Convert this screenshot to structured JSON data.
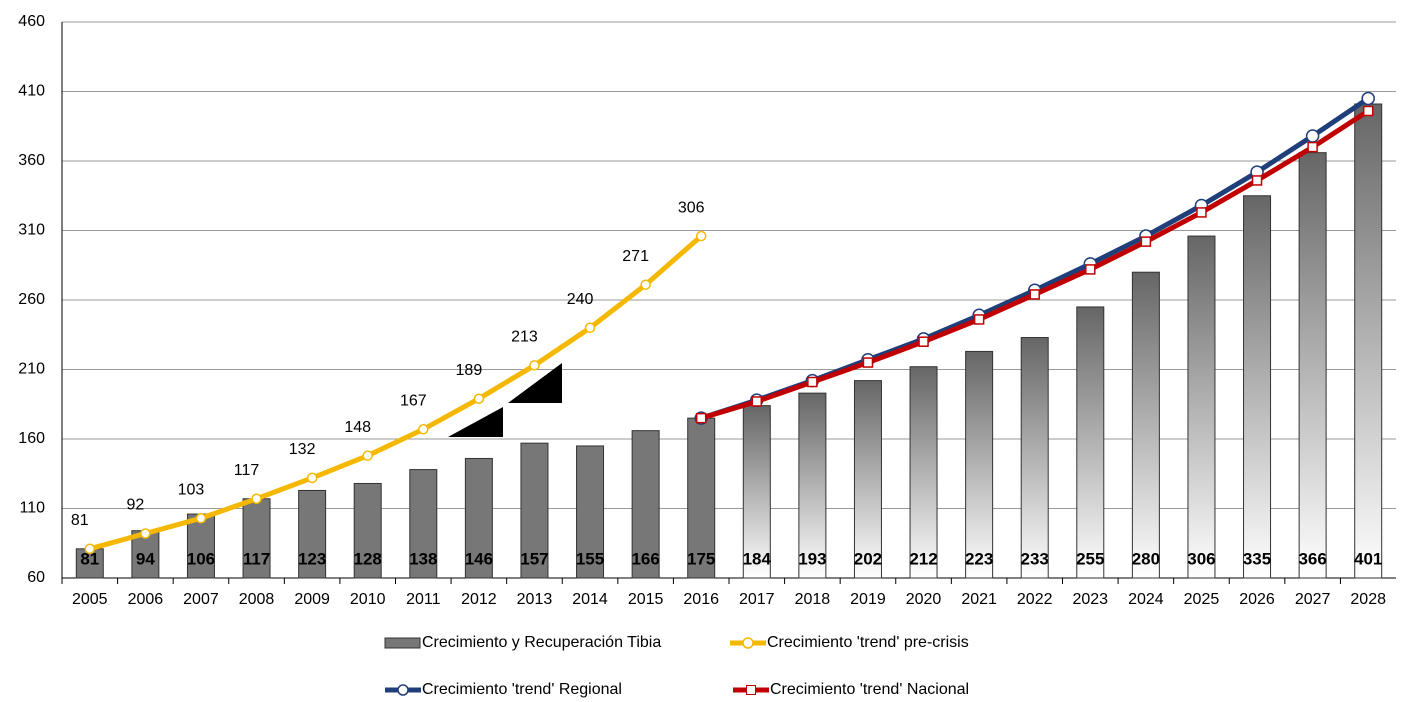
{
  "chart_data": {
    "type": "bar_line",
    "categories": [
      "2005",
      "2006",
      "2007",
      "2008",
      "2009",
      "2010",
      "2011",
      "2012",
      "2013",
      "2014",
      "2015",
      "2016",
      "2017",
      "2018",
      "2019",
      "2020",
      "2021",
      "2022",
      "2023",
      "2024",
      "2025",
      "2026",
      "2027",
      "2028"
    ],
    "ylim": [
      60,
      460
    ],
    "yticks": [
      60,
      110,
      160,
      210,
      260,
      310,
      360,
      410,
      460
    ],
    "grid": true,
    "bars": {
      "name": "Crecimiento y Recuperación Tibia",
      "color": "#777777",
      "values": [
        81,
        94,
        106,
        117,
        123,
        128,
        138,
        146,
        157,
        155,
        166,
        175,
        184,
        193,
        202,
        212,
        223,
        233,
        255,
        280,
        306,
        335,
        366,
        401
      ],
      "fills": [
        "solid",
        "solid",
        "solid",
        "solid",
        "solid",
        "solid",
        "solid",
        "solid",
        "solid",
        "solid",
        "solid",
        "solid",
        "gradient",
        "gradient",
        "gradient",
        "gradient",
        "gradient",
        "gradient",
        "gradient",
        "gradient",
        "gradient",
        "gradient",
        "gradient",
        "gradient"
      ]
    },
    "series": [
      {
        "name": "Crecimiento 'trend' pre-crisis",
        "color": "#f5b800",
        "marker": "circle",
        "show_labels": true,
        "values": [
          81,
          92,
          103,
          117,
          132,
          148,
          167,
          189,
          213,
          240,
          271,
          306,
          null,
          null,
          null,
          null,
          null,
          null,
          null,
          null,
          null,
          null,
          null,
          null
        ]
      },
      {
        "name": "Crecimiento 'trend' Regional",
        "color": "#1f3f7a",
        "marker": "circle",
        "show_labels": false,
        "values": [
          null,
          null,
          null,
          null,
          null,
          null,
          null,
          null,
          null,
          null,
          null,
          175,
          188,
          202,
          217,
          232,
          249,
          267,
          286,
          306,
          328,
          352,
          378,
          405
        ]
      },
      {
        "name": "Crecimiento 'trend' Nacional",
        "color": "#c00000",
        "marker": "square",
        "show_labels": false,
        "values": [
          null,
          null,
          null,
          null,
          null,
          null,
          null,
          null,
          null,
          null,
          null,
          175,
          187,
          201,
          215,
          230,
          246,
          264,
          282,
          302,
          323,
          346,
          370,
          396
        ]
      }
    ]
  }
}
